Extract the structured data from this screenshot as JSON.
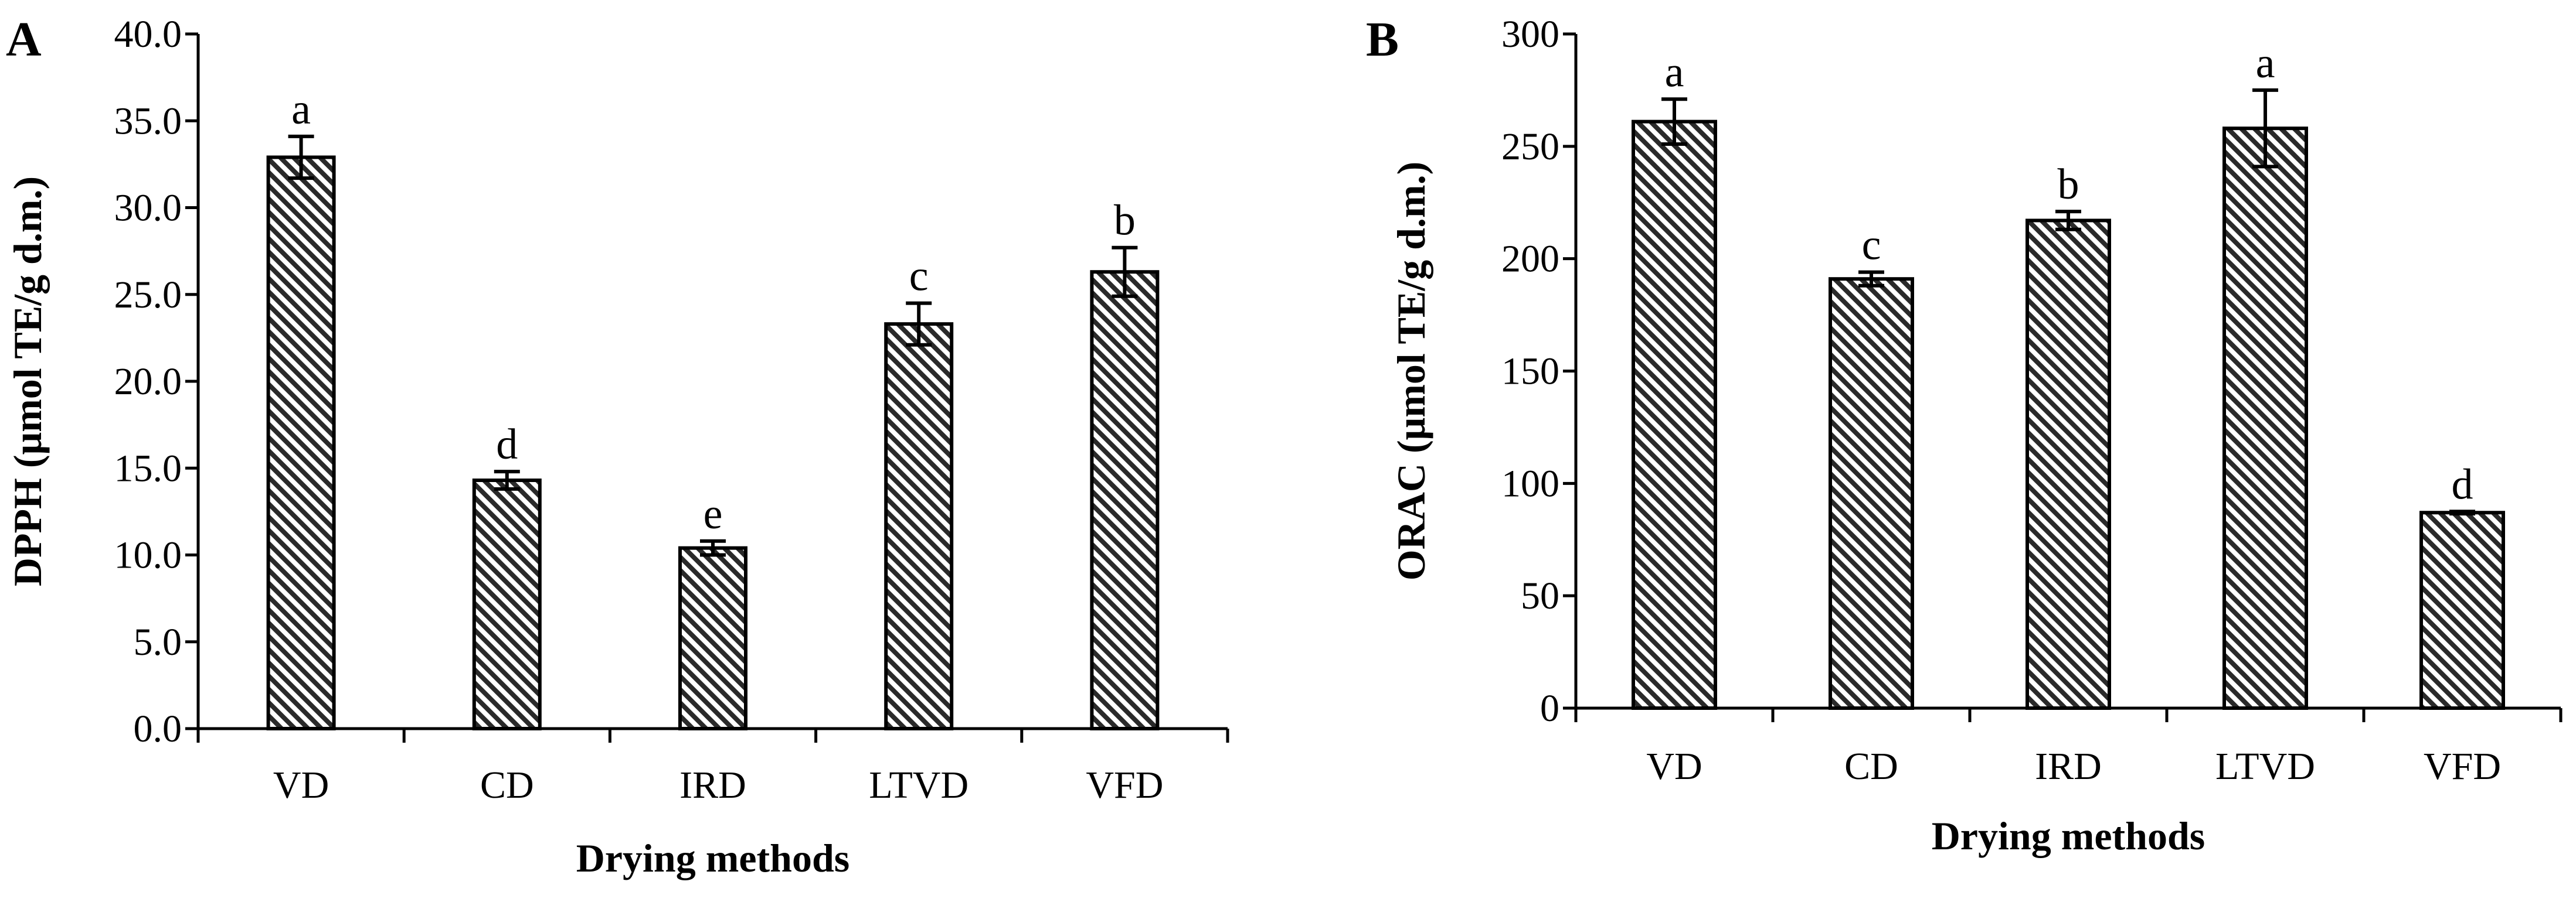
{
  "chart_data": [
    {
      "type": "bar",
      "panel": "A",
      "title": "",
      "xlabel": "Drying methods",
      "ylabel": "DPPH (μmol TE/g d.m.)",
      "categories": [
        "VD",
        "CD",
        "IRD",
        "LTVD",
        "VFD"
      ],
      "values": [
        32.9,
        14.3,
        10.4,
        23.3,
        26.3
      ],
      "errors": [
        1.2,
        0.5,
        0.4,
        1.2,
        1.4
      ],
      "significance": [
        "a",
        "d",
        "e",
        "c",
        "b"
      ],
      "ylim": [
        0,
        40
      ],
      "yticks": [
        0,
        5,
        10,
        15,
        20,
        25,
        30,
        35,
        40
      ],
      "ytick_labels": [
        "0.0",
        "5.0",
        "10.0",
        "15.0",
        "20.0",
        "25.0",
        "30.0",
        "35.0",
        "40.0"
      ],
      "grid": false,
      "pattern": "diagonal-hatch"
    },
    {
      "type": "bar",
      "panel": "B",
      "title": "",
      "xlabel": "Drying methods",
      "ylabel": "ORAC (μmol TE/g d.m.)",
      "categories": [
        "VD",
        "CD",
        "IRD",
        "LTVD",
        "VFD"
      ],
      "values": [
        261,
        191,
        217,
        258,
        87
      ],
      "errors": [
        10,
        3,
        4,
        17,
        0.5
      ],
      "significance": [
        "a",
        "c",
        "b",
        "a",
        "d"
      ],
      "ylim": [
        0,
        300
      ],
      "yticks": [
        0,
        50,
        100,
        150,
        200,
        250,
        300
      ],
      "ytick_labels": [
        "0",
        "50",
        "100",
        "150",
        "200",
        "250",
        "300"
      ],
      "grid": false,
      "pattern": "diagonal-hatch"
    }
  ]
}
